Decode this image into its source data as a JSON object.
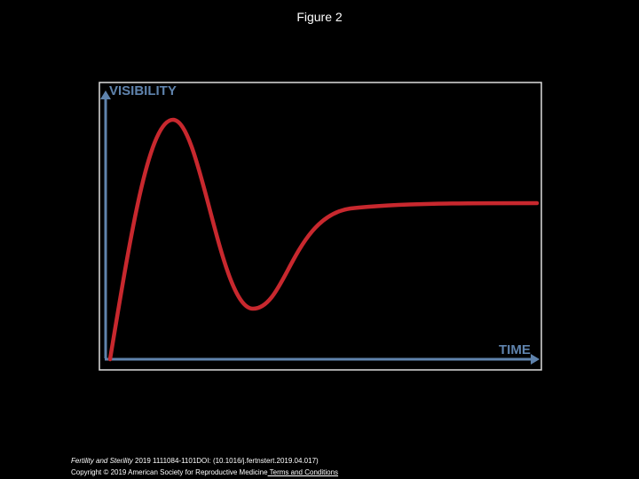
{
  "header": {
    "title": "Figure 2"
  },
  "figure": {
    "y_axis_label": "VISIBILITY",
    "x_axis_label": "TIME"
  },
  "footer": {
    "journal": "Fertility and Sterility",
    "citation": " 2019 1111084-1101DOI: (10.1016/j.fertnstert.2019.04.017)",
    "copyright": "Copyright © 2019 American Society for Reproductive Medicine",
    "link": " Terms and Conditions"
  }
}
